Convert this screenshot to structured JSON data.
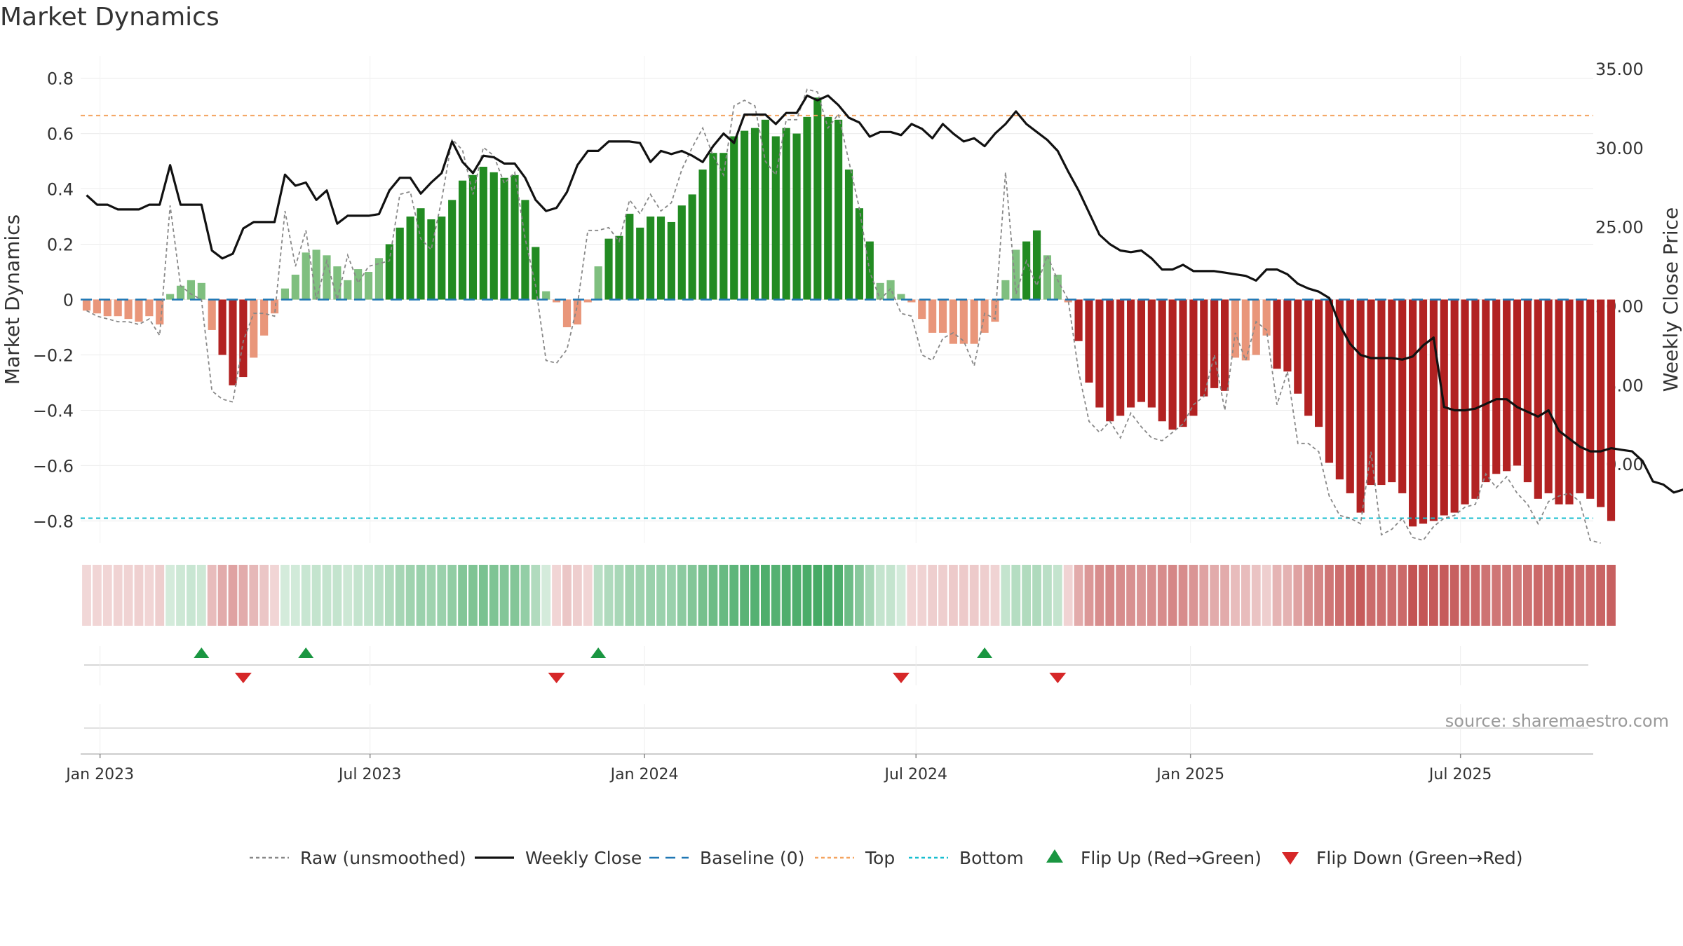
{
  "title": "Market Dynamics",
  "source": "source: sharemaestro.com",
  "colors": {
    "strong_green": "#228b22",
    "light_green": "#7fbf7f",
    "strong_red": "#b22222",
    "light_red": "#e9967a",
    "close_line": "#111111",
    "raw_line": "#888888",
    "baseline": "#1f77b4",
    "top": "#f4a460",
    "bottom": "#17becf",
    "flip_up": "#1a9641",
    "flip_down": "#d62728"
  },
  "chart_data": {
    "type": "bar",
    "title": "Market Dynamics",
    "ylabel": "Market Dynamics",
    "y2label": "Weekly Close Price",
    "ylim": [
      -0.88,
      0.88
    ],
    "y2lim": [
      5.0,
      35.8
    ],
    "yticks": [
      0.8,
      0.6,
      0.4,
      0.2,
      0,
      -0.2,
      -0.4,
      -0.6,
      -0.8
    ],
    "ytick_labels": [
      "0.8",
      "0.6",
      "0.4",
      "0.2",
      "0",
      "−0.2",
      "−0.4",
      "−0.6",
      "−0.8"
    ],
    "y2ticks": [
      35,
      30,
      25,
      20,
      15,
      10
    ],
    "y2tick_labels": [
      "35.00",
      "30.00",
      "25.00",
      "20.00",
      "15.00",
      "10.00"
    ],
    "x_start": "2022-12-19",
    "x_end": "2025-09-28",
    "xticks": [
      "2023-01-01",
      "2023-07-01",
      "2024-01-01",
      "2024-07-01",
      "2025-01-01",
      "2025-07-01"
    ],
    "xtick_labels": [
      "Jan 2023",
      "Jul 2023",
      "Jan 2024",
      "Jul 2024",
      "Jan 2025",
      "Jul 2025"
    ],
    "week_start": "2022-12-23",
    "top_level": 0.665,
    "bottom_level": -0.79,
    "baseline": 0,
    "dynamics": [
      -0.04,
      -0.05,
      -0.06,
      -0.06,
      -0.07,
      -0.08,
      -0.06,
      -0.09,
      0.02,
      0.05,
      0.07,
      0.06,
      -0.11,
      -0.2,
      -0.31,
      -0.28,
      -0.21,
      -0.13,
      -0.05,
      0.04,
      0.09,
      0.17,
      0.18,
      0.16,
      0.12,
      0.07,
      0.11,
      0.1,
      0.15,
      0.2,
      0.26,
      0.3,
      0.33,
      0.29,
      0.3,
      0.36,
      0.43,
      0.45,
      0.48,
      0.46,
      0.44,
      0.45,
      0.36,
      0.19,
      0.03,
      -0.01,
      -0.1,
      -0.09,
      -0.01,
      0.12,
      0.22,
      0.23,
      0.31,
      0.26,
      0.3,
      0.3,
      0.28,
      0.34,
      0.38,
      0.47,
      0.53,
      0.53,
      0.59,
      0.61,
      0.62,
      0.65,
      0.59,
      0.62,
      0.6,
      0.66,
      0.73,
      0.66,
      0.65,
      0.47,
      0.33,
      0.21,
      0.06,
      0.07,
      0.02,
      -0.01,
      -0.07,
      -0.12,
      -0.12,
      -0.16,
      -0.16,
      -0.16,
      -0.12,
      -0.08,
      0.07,
      0.18,
      0.21,
      0.25,
      0.16,
      0.09,
      -0.01,
      -0.15,
      -0.3,
      -0.39,
      -0.44,
      -0.42,
      -0.39,
      -0.37,
      -0.39,
      -0.44,
      -0.47,
      -0.46,
      -0.42,
      -0.35,
      -0.32,
      -0.33,
      -0.21,
      -0.22,
      -0.2,
      -0.13,
      -0.25,
      -0.26,
      -0.34,
      -0.42,
      -0.46,
      -0.59,
      -0.65,
      -0.7,
      -0.77,
      -0.67,
      -0.67,
      -0.66,
      -0.7,
      -0.82,
      -0.81,
      -0.8,
      -0.78,
      -0.77,
      -0.74,
      -0.72,
      -0.66,
      -0.63,
      -0.62,
      -0.6,
      -0.66,
      -0.72,
      -0.7,
      -0.74,
      -0.74,
      -0.7,
      -0.72,
      -0.75,
      -0.8
    ],
    "raw": [
      -0.04,
      -0.06,
      -0.07,
      -0.08,
      -0.08,
      -0.09,
      -0.07,
      -0.13,
      0.34,
      0.05,
      0.02,
      0.0,
      -0.33,
      -0.36,
      -0.37,
      -0.15,
      -0.05,
      -0.05,
      -0.06,
      0.32,
      0.12,
      0.25,
      0.0,
      0.14,
      0.0,
      0.16,
      0.06,
      0.12,
      0.13,
      0.14,
      0.38,
      0.39,
      0.22,
      0.18,
      0.36,
      0.58,
      0.54,
      0.38,
      0.55,
      0.52,
      0.42,
      0.46,
      0.22,
      0.05,
      -0.22,
      -0.23,
      -0.18,
      -0.02,
      0.25,
      0.25,
      0.26,
      0.21,
      0.36,
      0.31,
      0.38,
      0.32,
      0.35,
      0.47,
      0.55,
      0.62,
      0.52,
      0.45,
      0.7,
      0.72,
      0.7,
      0.5,
      0.45,
      0.65,
      0.65,
      0.76,
      0.75,
      0.62,
      0.67,
      0.5,
      0.33,
      0.1,
      0.0,
      0.04,
      -0.05,
      -0.06,
      -0.2,
      -0.22,
      -0.14,
      -0.12,
      -0.15,
      -0.24,
      -0.05,
      -0.07,
      0.46,
      0.02,
      0.14,
      0.05,
      0.16,
      0.07,
      0.0,
      -0.26,
      -0.44,
      -0.48,
      -0.44,
      -0.5,
      -0.41,
      -0.46,
      -0.5,
      -0.51,
      -0.48,
      -0.45,
      -0.38,
      -0.35,
      -0.2,
      -0.4,
      -0.12,
      -0.22,
      -0.08,
      -0.11,
      -0.38,
      -0.26,
      -0.52,
      -0.52,
      -0.55,
      -0.71,
      -0.78,
      -0.79,
      -0.81,
      -0.55,
      -0.85,
      -0.83,
      -0.79,
      -0.86,
      -0.87,
      -0.82,
      -0.79,
      -0.78,
      -0.75,
      -0.74,
      -0.63,
      -0.68,
      -0.64,
      -0.7,
      -0.74,
      -0.81,
      -0.73,
      -0.71,
      -0.7,
      -0.73,
      -0.87,
      -0.88
    ],
    "close": [
      27.0,
      26.4,
      26.4,
      26.1,
      26.1,
      26.1,
      26.4,
      26.4,
      28.9,
      26.4,
      26.4,
      26.4,
      23.5,
      23.0,
      23.3,
      24.9,
      25.3,
      25.3,
      25.3,
      28.3,
      27.6,
      27.8,
      26.7,
      27.3,
      25.2,
      25.7,
      25.7,
      25.7,
      25.8,
      27.3,
      28.1,
      28.1,
      27.1,
      27.8,
      28.4,
      30.4,
      29.1,
      28.4,
      29.5,
      29.4,
      29.0,
      29.0,
      28.1,
      26.7,
      26.0,
      26.2,
      27.2,
      28.9,
      29.8,
      29.8,
      30.4,
      30.4,
      30.4,
      30.3,
      29.1,
      29.8,
      29.6,
      29.8,
      29.5,
      29.1,
      30.1,
      30.9,
      30.3,
      32.1,
      32.1,
      32.1,
      31.5,
      32.2,
      32.2,
      33.3,
      33.0,
      33.3,
      32.7,
      31.9,
      31.6,
      30.7,
      31.0,
      31.0,
      30.8,
      31.5,
      31.2,
      30.6,
      31.5,
      30.9,
      30.4,
      30.6,
      30.1,
      30.9,
      31.5,
      32.3,
      31.5,
      31.0,
      30.5,
      29.8,
      28.5,
      27.3,
      25.9,
      24.5,
      23.9,
      23.5,
      23.4,
      23.5,
      23.0,
      22.3,
      22.3,
      22.6,
      22.2,
      22.2,
      22.2,
      22.1,
      22.0,
      21.9,
      21.6,
      22.3,
      22.3,
      22.0,
      21.4,
      21.1,
      20.9,
      20.5,
      18.8,
      17.6,
      16.9,
      16.7,
      16.7,
      16.7,
      16.6,
      16.8,
      17.5,
      18.0,
      13.6,
      13.4,
      13.4,
      13.5,
      13.8,
      14.1,
      14.1,
      13.6,
      13.3,
      13.0,
      13.4,
      12.1,
      11.6,
      11.1,
      10.8,
      10.8,
      11.0,
      10.9,
      10.8,
      10.2,
      8.9,
      8.7,
      8.2,
      8.4
    ],
    "intensity": [
      -0.18,
      -0.2,
      -0.2,
      -0.22,
      -0.22,
      -0.23,
      -0.2,
      -0.25,
      0.2,
      0.25,
      0.28,
      0.25,
      -0.35,
      -0.45,
      -0.5,
      -0.45,
      -0.38,
      -0.3,
      -0.2,
      0.2,
      0.22,
      0.28,
      0.3,
      0.3,
      0.3,
      0.25,
      0.3,
      0.32,
      0.36,
      0.4,
      0.46,
      0.5,
      0.52,
      0.5,
      0.52,
      0.56,
      0.62,
      0.64,
      0.66,
      0.64,
      0.62,
      0.62,
      0.55,
      0.4,
      0.2,
      -0.2,
      -0.3,
      -0.25,
      -0.2,
      0.35,
      0.42,
      0.45,
      0.5,
      0.5,
      0.52,
      0.52,
      0.52,
      0.58,
      0.62,
      0.68,
      0.72,
      0.74,
      0.78,
      0.8,
      0.82,
      0.84,
      0.82,
      0.84,
      0.84,
      0.86,
      0.88,
      0.86,
      0.84,
      0.72,
      0.6,
      0.45,
      0.3,
      0.3,
      0.2,
      -0.2,
      -0.22,
      -0.25,
      -0.25,
      -0.28,
      -0.28,
      -0.28,
      -0.25,
      -0.22,
      0.3,
      0.38,
      0.4,
      0.42,
      0.35,
      0.3,
      -0.22,
      -0.45,
      -0.55,
      -0.6,
      -0.62,
      -0.6,
      -0.58,
      -0.56,
      -0.58,
      -0.6,
      -0.62,
      -0.6,
      -0.56,
      -0.5,
      -0.45,
      -0.45,
      -0.35,
      -0.35,
      -0.32,
      -0.25,
      -0.4,
      -0.42,
      -0.5,
      -0.58,
      -0.62,
      -0.7,
      -0.74,
      -0.78,
      -0.82,
      -0.75,
      -0.74,
      -0.74,
      -0.76,
      -0.85,
      -0.84,
      -0.83,
      -0.82,
      -0.8,
      -0.78,
      -0.76,
      -0.72,
      -0.7,
      -0.7,
      -0.68,
      -0.72,
      -0.76,
      -0.75,
      -0.78,
      -0.78,
      -0.75,
      -0.76,
      -0.78,
      -0.8
    ],
    "flip_up_dates": [
      "2023-03-10",
      "2023-05-19",
      "2023-12-01",
      "2024-08-16"
    ],
    "flip_down_dates": [
      "2023-04-07",
      "2023-11-03",
      "2024-06-21",
      "2024-10-04"
    ],
    "legend": {
      "position": "bottom",
      "items": [
        {
          "label": "Raw (unsmoothed)",
          "style": "dotted",
          "color": "#888888"
        },
        {
          "label": "Weekly Close",
          "style": "solid",
          "color": "#111111"
        },
        {
          "label": "Baseline (0)",
          "style": "dashed",
          "color": "#1f77b4"
        },
        {
          "label": "Top",
          "style": "dotted",
          "color": "#f4a460"
        },
        {
          "label": "Bottom",
          "style": "dotted",
          "color": "#17becf"
        },
        {
          "label": "Flip Up (Red→Green)",
          "style": "up",
          "color": "#1a9641"
        },
        {
          "label": "Flip Down (Green→Red)",
          "style": "down",
          "color": "#d62728"
        }
      ]
    }
  }
}
